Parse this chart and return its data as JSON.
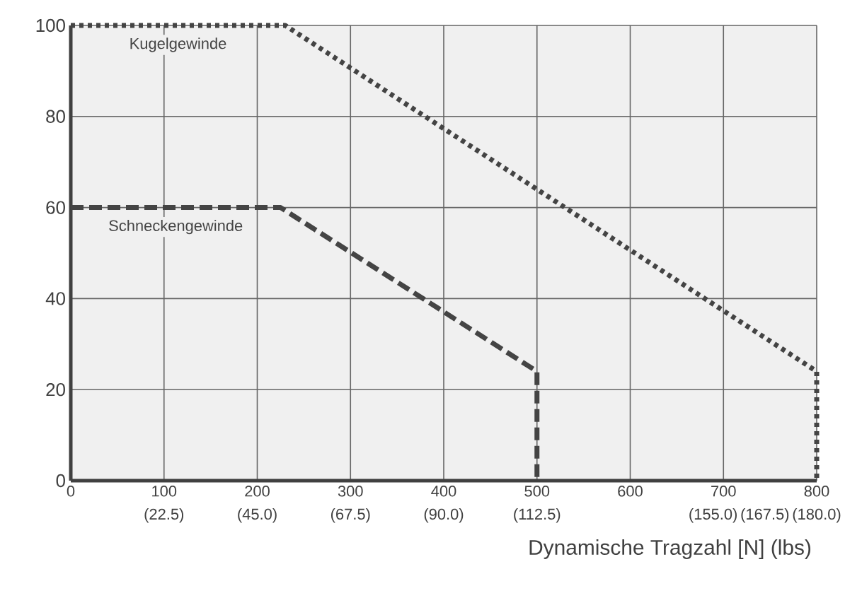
{
  "chart_data": {
    "type": "line",
    "xlabel": "Dynamische Tragzahl [N] (lbs)",
    "series": [
      {
        "name": "Kugelgewinde",
        "color": "#444444",
        "line_style": "dotted",
        "x": [
          0,
          230,
          800,
          800
        ],
        "values": [
          100,
          100,
          24,
          0
        ]
      },
      {
        "name": "Schneckengewinde",
        "color": "#444444",
        "line_style": "dashed",
        "x": [
          0,
          225,
          500,
          500
        ],
        "values": [
          60,
          60,
          24,
          0
        ]
      }
    ],
    "xlim": [
      0,
      800
    ],
    "ylim": [
      0,
      100
    ],
    "xticks": [
      0,
      100,
      200,
      300,
      400,
      500,
      600,
      700,
      800
    ],
    "x2lim": [
      0,
      180
    ],
    "x2ticks": [
      {
        "value": 22.5,
        "label": "(22.5)"
      },
      {
        "value": 45,
        "label": "(45.0)"
      },
      {
        "value": 67.5,
        "label": "(67.5)"
      },
      {
        "value": 90,
        "label": "(90.0)"
      },
      {
        "value": 112.5,
        "label": "(112.5)"
      },
      {
        "value": 155,
        "label": "(155.0)"
      },
      {
        "value": 167.5,
        "label": "(167.5)"
      },
      {
        "value": 180,
        "label": "(180.0)"
      }
    ],
    "yticks": [
      0,
      20,
      40,
      60,
      80,
      100
    ],
    "grid": true,
    "marker": "none"
  }
}
